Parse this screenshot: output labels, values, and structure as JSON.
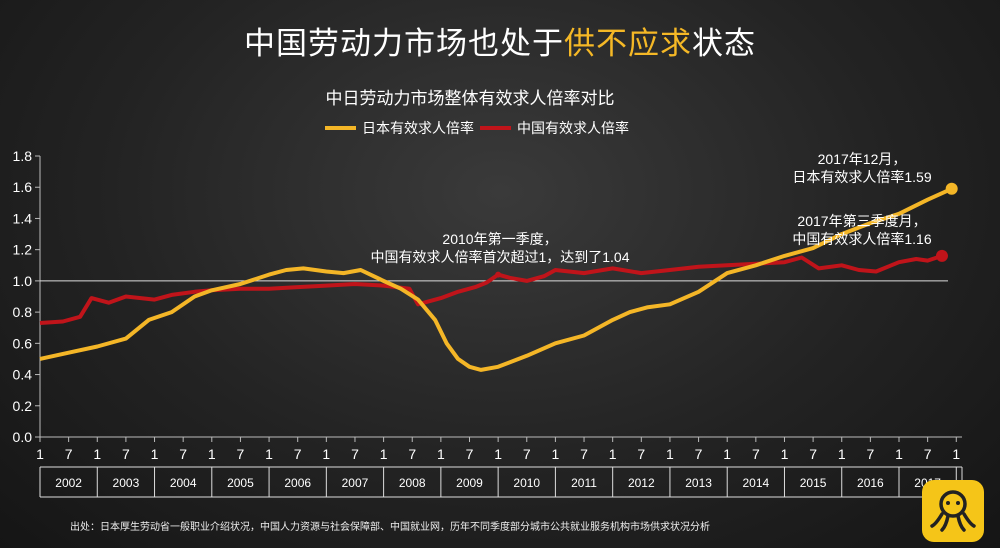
{
  "title": {
    "part1": "中国劳动力市场也处于",
    "highlight": "供不应求",
    "part2": "状态"
  },
  "colors": {
    "japan": "#f4b627",
    "china": "#c0141a",
    "highlight": "#f5b826"
  },
  "chart_data": {
    "type": "line",
    "title": "中日劳动力市场整体有效求人倍率对比",
    "ylim": [
      0,
      1.8
    ],
    "yticks": [
      "0.0",
      "0.2",
      "0.4",
      "0.6",
      "0.8",
      "1.0",
      "1.2",
      "1.4",
      "1.6",
      "1.8"
    ],
    "xlim": [
      2002.0,
      2018.1
    ],
    "month_ticks": [
      "1",
      "7"
    ],
    "years": [
      "2002",
      "2003",
      "2004",
      "2005",
      "2006",
      "2007",
      "2008",
      "2009",
      "2010",
      "2011",
      "2012",
      "2013",
      "2014",
      "2015",
      "2016",
      "2017"
    ],
    "reference_line": 1.0,
    "series": [
      {
        "name": "日本有效求人倍率",
        "color": "#f4b627",
        "x": [
          2002.0,
          2002.5,
          2003.0,
          2003.5,
          2003.9,
          2004.3,
          2004.7,
          2005.0,
          2005.5,
          2006.0,
          2006.3,
          2006.6,
          2007.0,
          2007.3,
          2007.6,
          2008.0,
          2008.3,
          2008.6,
          2008.9,
          2009.1,
          2009.3,
          2009.5,
          2009.7,
          2010.0,
          2010.5,
          2011.0,
          2011.5,
          2012.0,
          2012.3,
          2012.6,
          2013.0,
          2013.5,
          2014.0,
          2014.5,
          2015.0,
          2015.5,
          2016.0,
          2016.5,
          2017.0,
          2017.5,
          2017.92
        ],
        "y": [
          0.5,
          0.54,
          0.58,
          0.63,
          0.75,
          0.8,
          0.9,
          0.94,
          0.98,
          1.04,
          1.07,
          1.08,
          1.06,
          1.05,
          1.07,
          1.0,
          0.95,
          0.88,
          0.75,
          0.6,
          0.5,
          0.45,
          0.43,
          0.45,
          0.52,
          0.6,
          0.65,
          0.75,
          0.8,
          0.83,
          0.85,
          0.93,
          1.05,
          1.1,
          1.16,
          1.21,
          1.3,
          1.37,
          1.43,
          1.52,
          1.59
        ]
      },
      {
        "name": "中国有效求人倍率",
        "color": "#c0141a",
        "x": [
          2002.0,
          2002.4,
          2002.7,
          2002.9,
          2003.2,
          2003.5,
          2004.0,
          2004.3,
          2004.7,
          2005.0,
          2005.5,
          2006.0,
          2006.5,
          2007.0,
          2007.5,
          2008.0,
          2008.45,
          2008.6,
          2009.0,
          2009.3,
          2009.6,
          2009.8,
          2010.0,
          2010.2,
          2010.5,
          2010.8,
          2011.0,
          2011.5,
          2012.0,
          2012.5,
          2013.0,
          2013.5,
          2014.0,
          2014.5,
          2015.0,
          2015.3,
          2015.6,
          2016.0,
          2016.3,
          2016.6,
          2017.0,
          2017.3,
          2017.5,
          2017.75
        ],
        "y": [
          0.73,
          0.74,
          0.77,
          0.89,
          0.86,
          0.9,
          0.88,
          0.91,
          0.93,
          0.94,
          0.95,
          0.95,
          0.96,
          0.97,
          0.98,
          0.97,
          0.95,
          0.85,
          0.89,
          0.93,
          0.96,
          0.99,
          1.04,
          1.02,
          1.0,
          1.03,
          1.07,
          1.05,
          1.08,
          1.05,
          1.07,
          1.09,
          1.1,
          1.11,
          1.12,
          1.15,
          1.08,
          1.1,
          1.07,
          1.06,
          1.12,
          1.14,
          1.13,
          1.16
        ]
      }
    ],
    "annotations": [
      {
        "lines": [
          "2017年12月，",
          "日本有效求人倍率1.59"
        ]
      },
      {
        "lines": [
          "2017年第三季度月，",
          "中国有效求人倍率1.16"
        ]
      },
      {
        "lines": [
          "2010年第一季度，",
          "中国有效求人倍率首次超过1，达到了1.04"
        ]
      }
    ]
  },
  "source": "出处：日本厚生劳动省一般职业介绍状况，中国人力资源与社会保障部、中国就业网，历年不同季度部分城市公共就业服务机构市场供求状况分析"
}
